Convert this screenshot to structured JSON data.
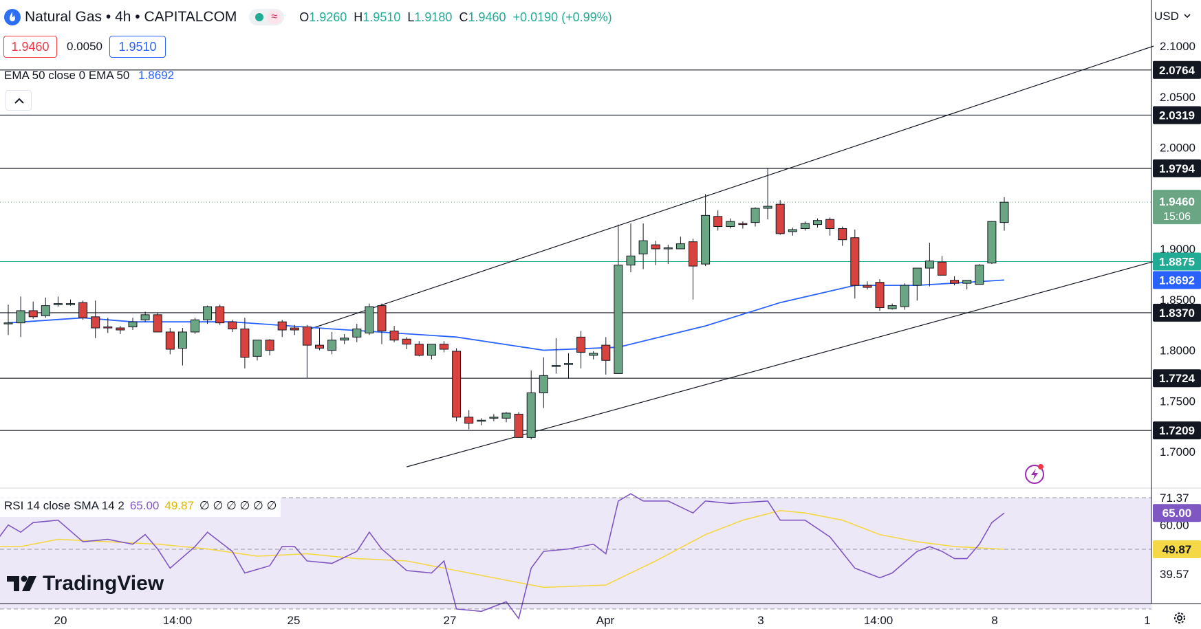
{
  "header": {
    "symbol_title": "Natural Gas • 4h • CAPITALCOM",
    "ohlc": {
      "open_label": "O",
      "open": "1.9260",
      "high_label": "H",
      "high": "1.9510",
      "low_label": "L",
      "low": "1.9180",
      "close_label": "C",
      "close": "1.9460",
      "change": "+0.0190 (+0.99%)"
    },
    "bid": "1.9460",
    "spread": "0.0050",
    "ask": "1.9510",
    "ema_legend_label": "EMA 50 close 0 EMA 50",
    "ema_legend_value": "1.8692",
    "currency": "USD",
    "rsi_legend_label": "RSI 14 close SMA 14 2",
    "rsi_legend_value": "65.00",
    "rsi_sma_legend_value": "49.87",
    "rsi_legend_extra": "∅ ∅ ∅ ∅ ∅ ∅",
    "brand": "TradingView"
  },
  "colors": {
    "up": "#6aa584",
    "down": "#d8433f",
    "ema": "#2962ff",
    "rsi": "#7e57c2",
    "rsi_sma": "#f5d846",
    "rsi_band": "#ede8f7"
  },
  "chart_data": [
    {
      "type": "candlestick",
      "title": "Natural Gas • 4h • CAPITALCOM",
      "ylim": [
        1.68,
        2.115
      ],
      "y_ticks": [
        "2.1000",
        "2.0500",
        "2.0000",
        "1.9000",
        "1.8500",
        "1.8000",
        "1.7500",
        "1.7000"
      ],
      "x_ticks": [
        "20",
        "14:00",
        "25",
        "27",
        "Apr",
        "3",
        "14:00",
        "8",
        "1"
      ],
      "candles": [
        {
          "o": 1.827,
          "h": 1.845,
          "l": 1.815,
          "c": 1.827
        },
        {
          "o": 1.827,
          "h": 1.853,
          "l": 1.813,
          "c": 1.839
        },
        {
          "o": 1.839,
          "h": 1.848,
          "l": 1.831,
          "c": 1.833
        },
        {
          "o": 1.834,
          "h": 1.852,
          "l": 1.832,
          "c": 1.844
        },
        {
          "o": 1.845,
          "h": 1.853,
          "l": 1.843,
          "c": 1.846
        },
        {
          "o": 1.846,
          "h": 1.85,
          "l": 1.844,
          "c": 1.846
        },
        {
          "o": 1.847,
          "h": 1.849,
          "l": 1.83,
          "c": 1.832
        },
        {
          "o": 1.833,
          "h": 1.849,
          "l": 1.812,
          "c": 1.822
        },
        {
          "o": 1.823,
          "h": 1.832,
          "l": 1.817,
          "c": 1.822
        },
        {
          "o": 1.822,
          "h": 1.824,
          "l": 1.816,
          "c": 1.82
        },
        {
          "o": 1.823,
          "h": 1.832,
          "l": 1.82,
          "c": 1.828
        },
        {
          "o": 1.83,
          "h": 1.838,
          "l": 1.828,
          "c": 1.835
        },
        {
          "o": 1.835,
          "h": 1.837,
          "l": 1.818,
          "c": 1.818
        },
        {
          "o": 1.818,
          "h": 1.822,
          "l": 1.796,
          "c": 1.801
        },
        {
          "o": 1.802,
          "h": 1.822,
          "l": 1.785,
          "c": 1.818
        },
        {
          "o": 1.818,
          "h": 1.832,
          "l": 1.816,
          "c": 1.83
        },
        {
          "o": 1.83,
          "h": 1.844,
          "l": 1.826,
          "c": 1.843
        },
        {
          "o": 1.843,
          "h": 1.845,
          "l": 1.825,
          "c": 1.827
        },
        {
          "o": 1.828,
          "h": 1.83,
          "l": 1.818,
          "c": 1.821
        },
        {
          "o": 1.821,
          "h": 1.832,
          "l": 1.782,
          "c": 1.793
        },
        {
          "o": 1.794,
          "h": 1.81,
          "l": 1.79,
          "c": 1.81
        },
        {
          "o": 1.81,
          "h": 1.811,
          "l": 1.795,
          "c": 1.8
        },
        {
          "o": 1.828,
          "h": 1.83,
          "l": 1.813,
          "c": 1.82
        },
        {
          "o": 1.822,
          "h": 1.825,
          "l": 1.815,
          "c": 1.82
        },
        {
          "o": 1.823,
          "h": 1.825,
          "l": 1.773,
          "c": 1.805
        },
        {
          "o": 1.805,
          "h": 1.822,
          "l": 1.8,
          "c": 1.802
        },
        {
          "o": 1.8,
          "h": 1.818,
          "l": 1.796,
          "c": 1.81
        },
        {
          "o": 1.81,
          "h": 1.816,
          "l": 1.806,
          "c": 1.812
        },
        {
          "o": 1.813,
          "h": 1.826,
          "l": 1.808,
          "c": 1.821
        },
        {
          "o": 1.817,
          "h": 1.846,
          "l": 1.815,
          "c": 1.843
        },
        {
          "o": 1.844,
          "h": 1.846,
          "l": 1.806,
          "c": 1.819
        },
        {
          "o": 1.819,
          "h": 1.824,
          "l": 1.808,
          "c": 1.81
        },
        {
          "o": 1.811,
          "h": 1.813,
          "l": 1.801,
          "c": 1.806
        },
        {
          "o": 1.806,
          "h": 1.809,
          "l": 1.794,
          "c": 1.795
        },
        {
          "o": 1.795,
          "h": 1.806,
          "l": 1.791,
          "c": 1.806
        },
        {
          "o": 1.806,
          "h": 1.809,
          "l": 1.798,
          "c": 1.801
        },
        {
          "o": 1.799,
          "h": 1.802,
          "l": 1.73,
          "c": 1.734
        },
        {
          "o": 1.734,
          "h": 1.741,
          "l": 1.722,
          "c": 1.728
        },
        {
          "o": 1.731,
          "h": 1.733,
          "l": 1.726,
          "c": 1.731
        },
        {
          "o": 1.733,
          "h": 1.737,
          "l": 1.73,
          "c": 1.734
        },
        {
          "o": 1.733,
          "h": 1.739,
          "l": 1.729,
          "c": 1.738
        },
        {
          "o": 1.737,
          "h": 1.739,
          "l": 1.715,
          "c": 1.714
        },
        {
          "o": 1.714,
          "h": 1.78,
          "l": 1.712,
          "c": 1.758
        },
        {
          "o": 1.758,
          "h": 1.793,
          "l": 1.743,
          "c": 1.775
        },
        {
          "o": 1.785,
          "h": 1.812,
          "l": 1.777,
          "c": 1.785
        },
        {
          "o": 1.786,
          "h": 1.797,
          "l": 1.772,
          "c": 1.787
        },
        {
          "o": 1.813,
          "h": 1.819,
          "l": 1.782,
          "c": 1.798
        },
        {
          "o": 1.795,
          "h": 1.799,
          "l": 1.791,
          "c": 1.797
        },
        {
          "o": 1.805,
          "h": 1.813,
          "l": 1.776,
          "c": 1.79
        },
        {
          "o": 1.777,
          "h": 1.924,
          "l": 1.777,
          "c": 1.884
        },
        {
          "o": 1.884,
          "h": 1.925,
          "l": 1.877,
          "c": 1.893
        },
        {
          "o": 1.895,
          "h": 1.925,
          "l": 1.88,
          "c": 1.908
        },
        {
          "o": 1.904,
          "h": 1.908,
          "l": 1.884,
          "c": 1.9
        },
        {
          "o": 1.901,
          "h": 1.904,
          "l": 1.885,
          "c": 1.901
        },
        {
          "o": 1.9,
          "h": 1.912,
          "l": 1.9,
          "c": 1.905
        },
        {
          "o": 1.907,
          "h": 1.91,
          "l": 1.85,
          "c": 1.883
        },
        {
          "o": 1.885,
          "h": 1.954,
          "l": 1.883,
          "c": 1.933
        },
        {
          "o": 1.932,
          "h": 1.938,
          "l": 1.918,
          "c": 1.922
        },
        {
          "o": 1.922,
          "h": 1.93,
          "l": 1.92,
          "c": 1.927
        },
        {
          "o": 1.925,
          "h": 1.927,
          "l": 1.92,
          "c": 1.924
        },
        {
          "o": 1.926,
          "h": 1.941,
          "l": 1.922,
          "c": 1.94
        },
        {
          "o": 1.94,
          "h": 1.98,
          "l": 1.929,
          "c": 1.942
        },
        {
          "o": 1.944,
          "h": 1.948,
          "l": 1.914,
          "c": 1.915
        },
        {
          "o": 1.917,
          "h": 1.921,
          "l": 1.913,
          "c": 1.919
        },
        {
          "o": 1.92,
          "h": 1.927,
          "l": 1.918,
          "c": 1.925
        },
        {
          "o": 1.924,
          "h": 1.93,
          "l": 1.921,
          "c": 1.928
        },
        {
          "o": 1.929,
          "h": 1.931,
          "l": 1.913,
          "c": 1.92
        },
        {
          "o": 1.92,
          "h": 1.922,
          "l": 1.903,
          "c": 1.909
        },
        {
          "o": 1.911,
          "h": 1.919,
          "l": 1.851,
          "c": 1.864
        },
        {
          "o": 1.864,
          "h": 1.868,
          "l": 1.86,
          "c": 1.862
        },
        {
          "o": 1.867,
          "h": 1.87,
          "l": 1.839,
          "c": 1.842
        },
        {
          "o": 1.841,
          "h": 1.846,
          "l": 1.84,
          "c": 1.844
        },
        {
          "o": 1.843,
          "h": 1.866,
          "l": 1.84,
          "c": 1.864
        },
        {
          "o": 1.864,
          "h": 1.88,
          "l": 1.849,
          "c": 1.881
        },
        {
          "o": 1.881,
          "h": 1.906,
          "l": 1.863,
          "c": 1.888
        },
        {
          "o": 1.887,
          "h": 1.893,
          "l": 1.874,
          "c": 1.874
        },
        {
          "o": 1.869,
          "h": 1.873,
          "l": 1.864,
          "c": 1.866
        },
        {
          "o": 1.866,
          "h": 1.869,
          "l": 1.86,
          "c": 1.869
        },
        {
          "o": 1.865,
          "h": 1.885,
          "l": 1.866,
          "c": 1.884
        },
        {
          "o": 1.886,
          "h": 1.927,
          "l": 1.885,
          "c": 1.927
        },
        {
          "o": 1.926,
          "h": 1.951,
          "l": 1.918,
          "c": 1.946
        }
      ],
      "ema50": [
        {
          "i": 0,
          "v": 1.827
        },
        {
          "i": 6,
          "v": 1.832
        },
        {
          "i": 10,
          "v": 1.828
        },
        {
          "i": 18,
          "v": 1.828
        },
        {
          "i": 26,
          "v": 1.821
        },
        {
          "i": 36,
          "v": 1.813
        },
        {
          "i": 43,
          "v": 1.8
        },
        {
          "i": 49,
          "v": 1.803
        },
        {
          "i": 56,
          "v": 1.824
        },
        {
          "i": 62,
          "v": 1.847
        },
        {
          "i": 68,
          "v": 1.864
        },
        {
          "i": 73,
          "v": 1.864
        },
        {
          "i": 80,
          "v": 1.8692
        }
      ],
      "horizontal_levels": [
        2.0764,
        2.0319,
        1.9794,
        1.837,
        1.7724,
        1.7209
      ],
      "level_labels": [
        "2.0764",
        "2.0319",
        "1.9794",
        "1.8370",
        "1.7724",
        "1.7209"
      ],
      "trend_channel": [
        {
          "from": [
            24,
            1.82
          ],
          "to": [
            92,
            2.1
          ]
        },
        {
          "from": [
            32,
            1.685
          ],
          "to": [
            92,
            1.8875
          ]
        }
      ],
      "axis_tags": {
        "last_price": "1.9460",
        "countdown": "15:06",
        "reference": "1.8875",
        "ema": "1.8692"
      }
    },
    {
      "type": "line",
      "title": "RSI 14 close SMA 14 2",
      "ylim": [
        17.0,
        78.0
      ],
      "y_ticks": [
        "71.37",
        "60.00",
        "39.57"
      ],
      "bands": [
        71.37,
        49.87,
        25.0
      ],
      "axis_tags": {
        "rsi": "65.00",
        "sma": "49.87"
      },
      "series": [
        {
          "name": "RSI",
          "values": [
            {
              "i": -1,
              "v": 53
            },
            {
              "i": 0,
              "v": 60
            },
            {
              "i": 1,
              "v": 57
            },
            {
              "i": 2,
              "v": 61
            },
            {
              "i": 4,
              "v": 62
            },
            {
              "i": 6,
              "v": 53
            },
            {
              "i": 8,
              "v": 54
            },
            {
              "i": 10,
              "v": 52
            },
            {
              "i": 11,
              "v": 56
            },
            {
              "i": 12,
              "v": 50
            },
            {
              "i": 13,
              "v": 42
            },
            {
              "i": 15,
              "v": 51
            },
            {
              "i": 16,
              "v": 57
            },
            {
              "i": 18,
              "v": 49
            },
            {
              "i": 19,
              "v": 40
            },
            {
              "i": 21,
              "v": 43
            },
            {
              "i": 22,
              "v": 51
            },
            {
              "i": 23,
              "v": 51
            },
            {
              "i": 24,
              "v": 45
            },
            {
              "i": 26,
              "v": 44
            },
            {
              "i": 28,
              "v": 49
            },
            {
              "i": 29,
              "v": 57
            },
            {
              "i": 30,
              "v": 50
            },
            {
              "i": 32,
              "v": 41
            },
            {
              "i": 34,
              "v": 40
            },
            {
              "i": 35,
              "v": 45
            },
            {
              "i": 36,
              "v": 25
            },
            {
              "i": 38,
              "v": 24
            },
            {
              "i": 40,
              "v": 28
            },
            {
              "i": 41,
              "v": 21
            },
            {
              "i": 42,
              "v": 42
            },
            {
              "i": 43,
              "v": 49
            },
            {
              "i": 45,
              "v": 50
            },
            {
              "i": 47,
              "v": 52
            },
            {
              "i": 48,
              "v": 48
            },
            {
              "i": 49,
              "v": 70
            },
            {
              "i": 50,
              "v": 73
            },
            {
              "i": 51,
              "v": 70
            },
            {
              "i": 53,
              "v": 70
            },
            {
              "i": 55,
              "v": 65
            },
            {
              "i": 56,
              "v": 70
            },
            {
              "i": 58,
              "v": 69
            },
            {
              "i": 61,
              "v": 70
            },
            {
              "i": 62,
              "v": 62
            },
            {
              "i": 64,
              "v": 62
            },
            {
              "i": 66,
              "v": 55
            },
            {
              "i": 68,
              "v": 42
            },
            {
              "i": 70,
              "v": 38
            },
            {
              "i": 71,
              "v": 40
            },
            {
              "i": 73,
              "v": 49
            },
            {
              "i": 74,
              "v": 51
            },
            {
              "i": 75,
              "v": 49
            },
            {
              "i": 76,
              "v": 46
            },
            {
              "i": 77,
              "v": 46
            },
            {
              "i": 78,
              "v": 52
            },
            {
              "i": 79,
              "v": 61
            },
            {
              "i": 80,
              "v": 65
            }
          ]
        },
        {
          "name": "SMA",
          "values": [
            {
              "i": -1,
              "v": 51
            },
            {
              "i": 1,
              "v": 51
            },
            {
              "i": 4,
              "v": 54
            },
            {
              "i": 8,
              "v": 53
            },
            {
              "i": 12,
              "v": 52
            },
            {
              "i": 16,
              "v": 50
            },
            {
              "i": 20,
              "v": 47
            },
            {
              "i": 24,
              "v": 48
            },
            {
              "i": 28,
              "v": 46
            },
            {
              "i": 32,
              "v": 45
            },
            {
              "i": 36,
              "v": 41
            },
            {
              "i": 40,
              "v": 37
            },
            {
              "i": 43,
              "v": 34
            },
            {
              "i": 48,
              "v": 35
            },
            {
              "i": 52,
              "v": 45
            },
            {
              "i": 56,
              "v": 56
            },
            {
              "i": 59,
              "v": 62
            },
            {
              "i": 62,
              "v": 66
            },
            {
              "i": 64,
              "v": 65
            },
            {
              "i": 67,
              "v": 62
            },
            {
              "i": 70,
              "v": 56
            },
            {
              "i": 73,
              "v": 53
            },
            {
              "i": 76,
              "v": 51
            },
            {
              "i": 80,
              "v": 49.87
            }
          ]
        }
      ]
    }
  ]
}
